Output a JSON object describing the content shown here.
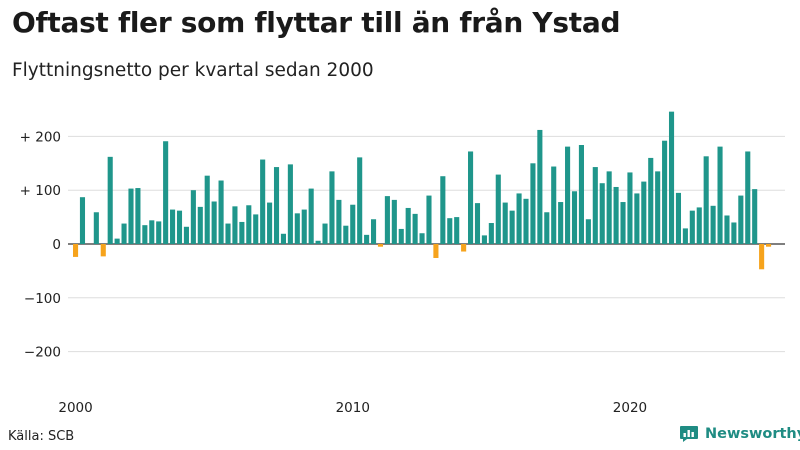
{
  "title": "Oftast fler som flyttar till än från Ystad",
  "subtitle": "Flyttningsnetto per kvartal sedan 2000",
  "source": "Källa: SCB",
  "brand": {
    "name": "Newsworthy",
    "icon": "newsworthy-chart-logo-icon"
  },
  "colors": {
    "positive": "#1f968b",
    "negative": "#f6a31c",
    "grid": "#dddddd",
    "axis": "#333333"
  },
  "chart_data": {
    "type": "bar",
    "x_start": "2000 Q1",
    "frequency": "quarterly",
    "x_ticks": [
      "2000",
      "2010",
      "2020"
    ],
    "y_ticks": [
      "+ 200",
      "+ 100",
      "0",
      "−100",
      "−200"
    ],
    "y_tick_values": [
      200,
      100,
      0,
      -100,
      -200
    ],
    "ylim": [
      -240,
      250
    ],
    "grid": true,
    "values": [
      -24,
      87,
      0,
      59,
      -23,
      162,
      10,
      38,
      103,
      104,
      35,
      44,
      42,
      191,
      64,
      62,
      32,
      100,
      69,
      127,
      79,
      118,
      38,
      70,
      41,
      72,
      55,
      157,
      77,
      143,
      19,
      148,
      57,
      64,
      103,
      6,
      38,
      135,
      82,
      34,
      73,
      161,
      17,
      46,
      -5,
      89,
      82,
      28,
      67,
      56,
      20,
      90,
      -26,
      126,
      48,
      50,
      -14,
      172,
      76,
      16,
      39,
      129,
      77,
      62,
      94,
      84,
      150,
      212,
      59,
      144,
      78,
      181,
      98,
      184,
      46,
      143,
      113,
      135,
      106,
      78,
      133,
      94,
      116,
      160,
      135,
      192,
      246,
      95,
      29,
      62,
      68,
      163,
      71,
      181,
      53,
      40,
      90,
      172,
      102,
      -47,
      -5
    ]
  }
}
